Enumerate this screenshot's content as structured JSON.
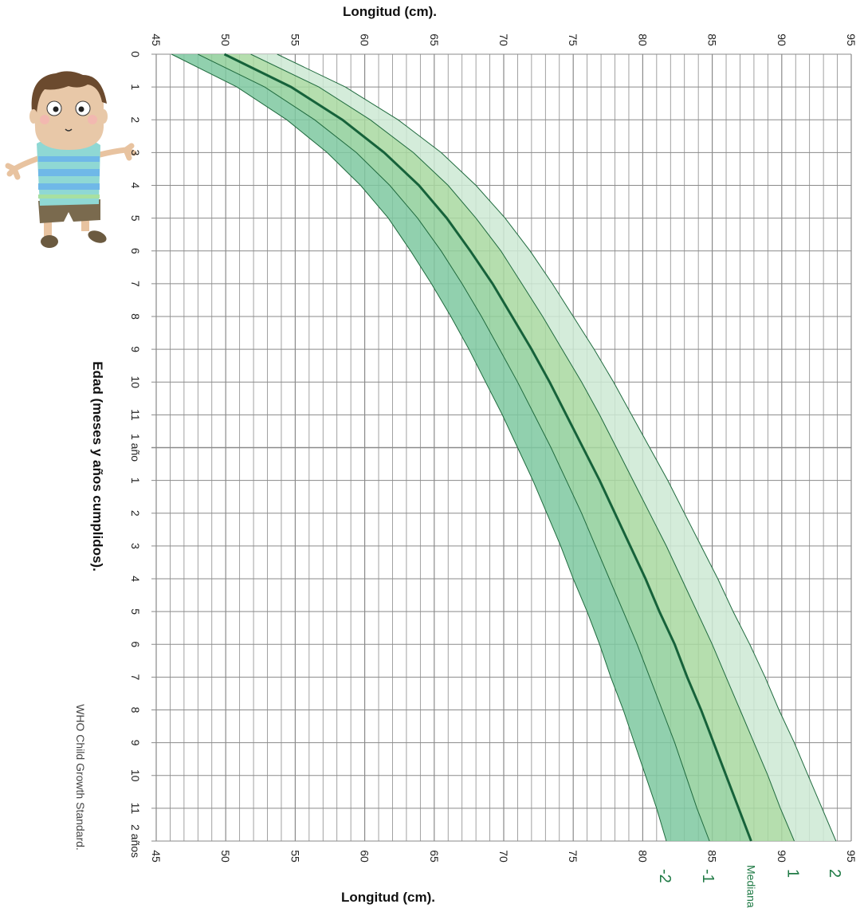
{
  "chart_data": {
    "type": "line",
    "title_top": "Longitud (cm).",
    "title_bottom": "Longitud (cm).",
    "ylabel": "Edad (meses y años cumplidos).",
    "source": "WHO Child Growth Standard.",
    "length_ticks": [
      "45",
      "50",
      "55",
      "60",
      "65",
      "70",
      "75",
      "80",
      "85",
      "90",
      "95"
    ],
    "length_range": [
      45,
      95
    ],
    "age_range_months": [
      0,
      24
    ],
    "age_ticks": [
      "0",
      "1",
      "2",
      "3",
      "4",
      "5",
      "6",
      "7",
      "8",
      "9",
      "10",
      "11",
      "1 año",
      "1",
      "2",
      "3",
      "4",
      "5",
      "6",
      "7",
      "8",
      "9",
      "10",
      "11",
      "2 años"
    ],
    "grid": true,
    "age_months": [
      0,
      1,
      2,
      3,
      4,
      5,
      6,
      7,
      8,
      9,
      10,
      11,
      12,
      13,
      14,
      15,
      16,
      17,
      18,
      19,
      20,
      21,
      22,
      23,
      24
    ],
    "series": [
      {
        "name": "-2",
        "values": [
          46.1,
          50.8,
          54.4,
          57.3,
          59.7,
          61.7,
          63.3,
          64.8,
          66.2,
          67.5,
          68.7,
          69.9,
          71.0,
          72.1,
          73.1,
          74.1,
          75.0,
          76.0,
          76.9,
          77.7,
          78.6,
          79.4,
          80.2,
          81.0,
          81.7
        ]
      },
      {
        "name": "-1",
        "values": [
          48.0,
          52.8,
          56.4,
          59.4,
          61.8,
          63.8,
          65.5,
          67.0,
          68.4,
          69.7,
          71.0,
          72.2,
          73.4,
          74.5,
          75.6,
          76.6,
          77.6,
          78.6,
          79.6,
          80.5,
          81.4,
          82.3,
          83.1,
          83.9,
          84.8
        ]
      },
      {
        "name": "Mediana",
        "values": [
          49.9,
          54.7,
          58.4,
          61.4,
          63.9,
          65.9,
          67.6,
          69.2,
          70.6,
          72.0,
          73.3,
          74.5,
          75.7,
          76.9,
          78.0,
          79.1,
          80.2,
          81.2,
          82.3,
          83.2,
          84.2,
          85.1,
          86.0,
          86.9,
          87.8
        ]
      },
      {
        "name": "1",
        "values": [
          51.8,
          56.7,
          60.4,
          63.5,
          66.0,
          68.0,
          69.8,
          71.3,
          72.8,
          74.2,
          75.6,
          76.9,
          78.1,
          79.3,
          80.5,
          81.7,
          82.8,
          83.9,
          85.0,
          86.0,
          87.0,
          88.0,
          89.0,
          89.9,
          90.9
        ]
      },
      {
        "name": "2",
        "values": [
          53.7,
          58.6,
          62.4,
          65.5,
          68.0,
          70.1,
          71.9,
          73.5,
          75.0,
          76.5,
          77.9,
          79.2,
          80.5,
          81.8,
          83.0,
          84.2,
          85.4,
          86.5,
          87.7,
          88.8,
          89.8,
          90.9,
          91.9,
          92.9,
          93.9
        ]
      }
    ],
    "colors": {
      "grid": "#8a8a8a",
      "band_outer_low": "#7ec8a0",
      "band_inner_low": "#8fcf9a",
      "band_inner_high": "#a8d8a0",
      "band_outer_high": "#cde9d4",
      "line": "#1f6a3e",
      "median": "#16623a",
      "zlabel": "#1f7a45"
    }
  }
}
